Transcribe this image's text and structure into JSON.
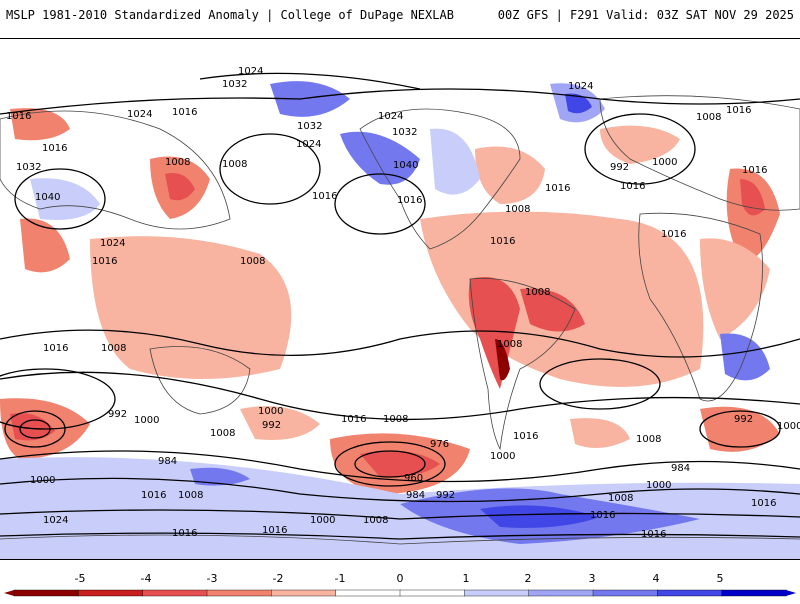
{
  "header": {
    "left_title": "MSLP 1981-2010 Standardized Anomaly | College of DuPage NEXLAB",
    "right_title": "00Z GFS | F291 Valid: 03Z SAT NOV 29 2025"
  },
  "colors": {
    "neg5": "#8c0000",
    "neg4": "#c81e1e",
    "neg3": "#e65050",
    "neg2": "#f0826e",
    "neg1": "#f8b4a0",
    "zero": "#ffffff",
    "pos1": "#c8cdfa",
    "pos2": "#a0a5f5",
    "pos3": "#7378ee",
    "pos4": "#4146e6",
    "pos5": "#0000c8"
  },
  "colorbar": {
    "ticks": [
      "-5",
      "-4",
      "-3",
      "-2",
      "-1",
      "0",
      "1",
      "2",
      "3",
      "4",
      "5"
    ]
  },
  "isobar_labels": [
    "1024",
    "1032",
    "1016",
    "1024",
    "1032",
    "1024",
    "1032",
    "1024",
    "1040",
    "1016",
    "1008",
    "1008",
    "1016",
    "1032",
    "1016",
    "1040",
    "1024",
    "1016",
    "1016",
    "1008",
    "992",
    "1000",
    "1016",
    "1016",
    "1008",
    "1016",
    "1024",
    "1016",
    "1008",
    "1016",
    "1008",
    "1016",
    "1008",
    "1008",
    "1016",
    "1000",
    "992",
    "1000",
    "992",
    "1008",
    "984",
    "1016",
    "1008",
    "976",
    "1000",
    "960",
    "984",
    "992",
    "1008",
    "1016",
    "992",
    "1008",
    "984",
    "1000",
    "1008",
    "1016",
    "1000",
    "1016",
    "1000",
    "1024",
    "1016",
    "1016",
    "1000",
    "1008",
    "1016",
    "1016"
  ]
}
